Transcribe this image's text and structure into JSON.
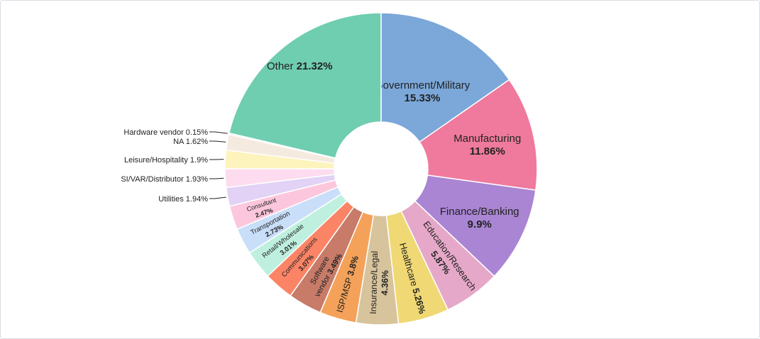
{
  "chart_data": {
    "type": "pie",
    "variant": "donut",
    "title": "",
    "slices": [
      {
        "label": "Government/Military",
        "value": 15.33,
        "value_text": "15.33%",
        "color": "#7ba7d9"
      },
      {
        "label": "Manufacturing",
        "value": 11.86,
        "value_text": "11.86%",
        "color": "#ef7a9d"
      },
      {
        "label": "Finance/Banking",
        "value": 9.9,
        "value_text": "9.9%",
        "color": "#a985d3"
      },
      {
        "label": "Education/Research",
        "value": 5.87,
        "value_text": "5.87%",
        "color": "#e6a8c8"
      },
      {
        "label": "Healthcare",
        "value": 5.26,
        "value_text": "5.26%",
        "color": "#f0d874"
      },
      {
        "label": "Insurance/Legal",
        "value": 4.36,
        "value_text": "4.36%",
        "color": "#d8c49c"
      },
      {
        "label": "ISP/MSP",
        "value": 3.8,
        "value_text": "3.8%",
        "color": "#f4a25a"
      },
      {
        "label": "Software vendor",
        "value": 3.49,
        "value_text": "3.49%",
        "color": "#c77b68"
      },
      {
        "label": "Communications",
        "value": 3.07,
        "value_text": "3.07%",
        "color": "#fb8466"
      },
      {
        "label": "Retail/Wholesale",
        "value": 3.01,
        "value_text": "3.01%",
        "color": "#bff0df"
      },
      {
        "label": "Transportation",
        "value": 2.73,
        "value_text": "2.73%",
        "color": "#c9def8"
      },
      {
        "label": "Consultant",
        "value": 2.47,
        "value_text": "2.47%",
        "color": "#fcc7dc"
      },
      {
        "label": "Utilities",
        "value": 1.94,
        "value_text": "1.94%",
        "color": "#e2d2f5"
      },
      {
        "label": "SI/VAR/Distributor",
        "value": 1.93,
        "value_text": "1.93%",
        "color": "#fddcef"
      },
      {
        "label": "Leisure/Hospitality",
        "value": 1.9,
        "value_text": "1.9%",
        "color": "#fdf3bd"
      },
      {
        "label": "NA",
        "value": 1.62,
        "value_text": "1.62%",
        "color": "#f4eae0"
      },
      {
        "label": "Hardware vendor",
        "value": 0.15,
        "value_text": "0.15%",
        "color": "#cfe9d7"
      },
      {
        "label": "Other",
        "value": 21.32,
        "value_text": "21.32%",
        "color": "#6fcdb0"
      }
    ]
  }
}
